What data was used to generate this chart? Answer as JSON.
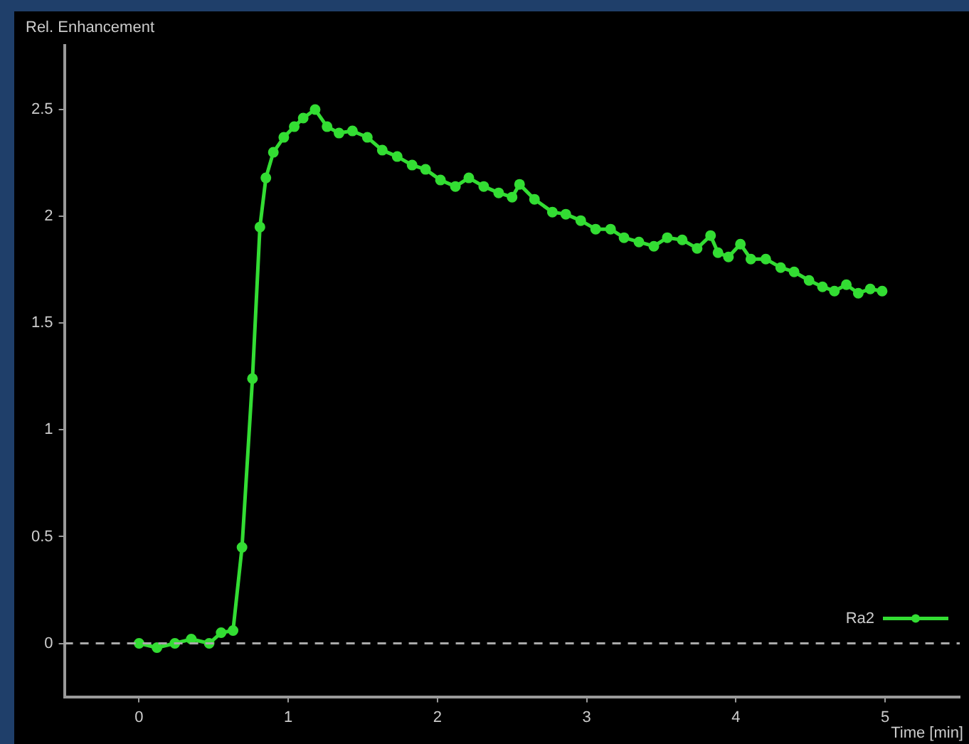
{
  "chart_data": {
    "type": "line",
    "ylabel": "Rel. Enhancement",
    "xlabel": "Time [min]",
    "x": [
      0,
      0.12,
      0.24,
      0.35,
      0.47,
      0.55,
      0.63,
      0.69,
      0.76,
      0.81,
      0.85,
      0.9,
      0.97,
      1.04,
      1.1,
      1.18,
      1.26,
      1.34,
      1.43,
      1.53,
      1.63,
      1.73,
      1.83,
      1.92,
      2.02,
      2.12,
      2.21,
      2.31,
      2.41,
      2.5,
      2.55,
      2.65,
      2.77,
      2.86,
      2.96,
      3.06,
      3.16,
      3.25,
      3.35,
      3.45,
      3.54,
      3.64,
      3.74,
      3.83,
      3.88,
      3.95,
      4.03,
      4.1,
      4.2,
      4.3,
      4.39,
      4.49,
      4.58,
      4.66,
      4.74,
      4.82,
      4.9,
      4.98
    ],
    "series": [
      {
        "name": "Ra2",
        "color": "#33dd33",
        "values": [
          0,
          -0.02,
          0,
          0.02,
          0,
          0.05,
          0.06,
          0.45,
          1.24,
          1.95,
          2.18,
          2.3,
          2.37,
          2.42,
          2.46,
          2.5,
          2.42,
          2.39,
          2.4,
          2.37,
          2.31,
          2.28,
          2.24,
          2.22,
          2.17,
          2.14,
          2.18,
          2.14,
          2.11,
          2.09,
          2.15,
          2.08,
          2.02,
          2.01,
          1.98,
          1.94,
          1.94,
          1.9,
          1.88,
          1.86,
          1.9,
          1.89,
          1.85,
          1.91,
          1.83,
          1.81,
          1.87,
          1.8,
          1.8,
          1.76,
          1.74,
          1.7,
          1.67,
          1.65,
          1.68,
          1.64,
          1.66,
          1.65
        ]
      }
    ],
    "xlim": [
      -0.5,
      5.5
    ],
    "xticks": [
      0,
      1,
      2,
      3,
      4,
      5
    ],
    "ylim": [
      -0.25,
      2.8
    ],
    "yticks": [
      0,
      0.5,
      1,
      1.5,
      2,
      2.5
    ],
    "ref_lines": [
      {
        "axis": "y",
        "value": 0,
        "color": "#aaaaaa",
        "line_style": "dashed"
      }
    ],
    "grid": false,
    "legend": "bottom right",
    "marker": "circle",
    "line_style": "solid"
  }
}
